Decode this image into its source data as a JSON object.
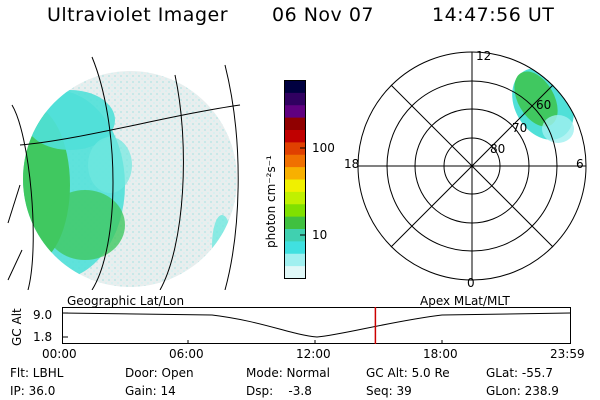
{
  "header": {
    "title": "Ultraviolet Imager",
    "date": "06 Nov 07",
    "time": "14:47:56 UT"
  },
  "colorbar": {
    "unit": "photon cm⁻²s⁻¹",
    "ticks": [
      "100",
      "10"
    ],
    "colors": [
      "#000040",
      "#300060",
      "#600080",
      "#900000",
      "#c00000",
      "#e04000",
      "#f07000",
      "#f8b000",
      "#f0f000",
      "#c0f000",
      "#80e000",
      "#40c040",
      "#40d0b0",
      "#40e0e0",
      "#a0f0f0",
      "#e0f8f8"
    ]
  },
  "labels": {
    "geo": "Geographic Lat/Lon",
    "apex": "Apex MLat/MLT"
  },
  "polar": {
    "mlt_labels": [
      "12",
      "18",
      "6",
      "0"
    ],
    "lat_labels": [
      "60",
      "70",
      "80"
    ]
  },
  "timeline": {
    "ylabel": "GC Alt",
    "yticks": [
      "9.0",
      "1.8"
    ],
    "xticks": [
      "00:00",
      "06:00",
      "12:00",
      "18:00",
      "23:59"
    ],
    "marker_color": "#cc0000",
    "current_time_fraction": 0.617
  },
  "footer": {
    "row1": [
      "Flt: LBHL",
      "Door: Open",
      "Mode: Normal",
      "GC Alt: 5.0 Re",
      "GLat: -55.7"
    ],
    "row2": [
      "IP: 36.0",
      "Gain: 14",
      "Dsp:    -3.8",
      "Seq: 39",
      "GLon: 238.9"
    ]
  }
}
